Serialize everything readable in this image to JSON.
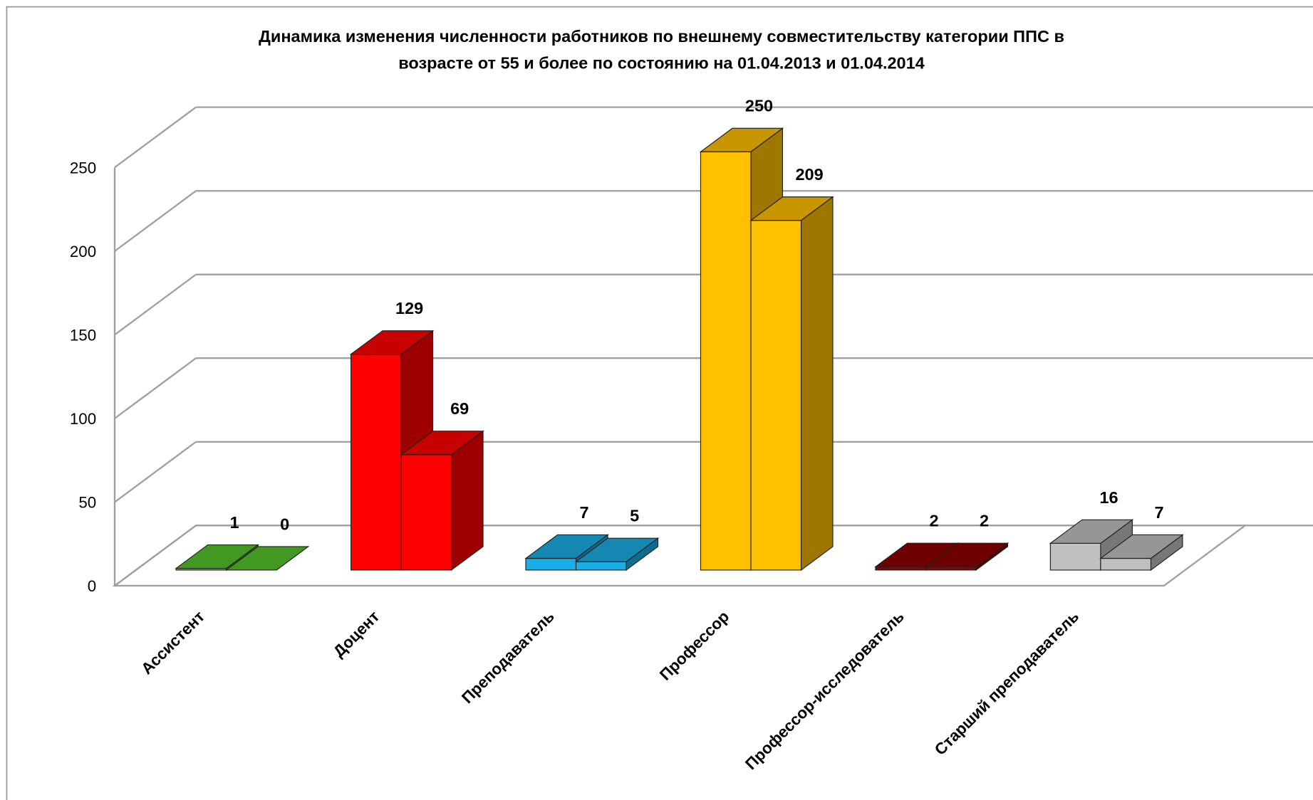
{
  "chart_data": {
    "type": "bar3d",
    "title": [
      "Динамика изменения численности работников по внешнему совместительству категории ППС в",
      "возрасте от 55 и более по состоянию на 01.04.2013 и 01.04.2014"
    ],
    "categories": [
      "Ассистент",
      "Доцент",
      "Преподаватель",
      "Профессор",
      "Профессор-исследователь",
      "Старший преподаватель"
    ],
    "colors": [
      "#55c42c",
      "#ff0000",
      "#19aee6",
      "#ffc000",
      "#8e0000",
      "#c0c0c0"
    ],
    "series": [
      {
        "values": [
          1,
          129,
          7,
          250,
          2,
          16
        ]
      },
      {
        "values": [
          0,
          69,
          5,
          209,
          2,
          7
        ]
      }
    ],
    "ylim": [
      0,
      250
    ],
    "yticks": [
      0,
      50,
      100,
      150,
      200,
      250
    ],
    "grid": true
  }
}
